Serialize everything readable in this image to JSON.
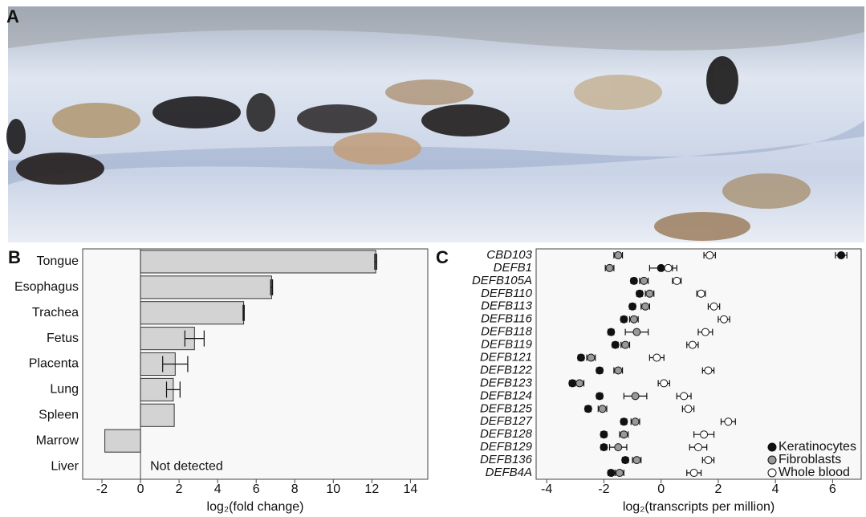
{
  "panel_labels": [
    "A",
    "B",
    "C"
  ],
  "chart_data": [
    {
      "type": "bar",
      "horizontal": true,
      "categories": [
        "Tongue",
        "Esophagus",
        "Trachea",
        "Fetus",
        "Placenta",
        "Lung",
        "Spleen",
        "Marrow",
        "Liver"
      ],
      "values": [
        12.2,
        6.8,
        5.35,
        2.8,
        1.8,
        1.7,
        1.75,
        -1.85,
        null
      ],
      "errors": [
        0.05,
        0.05,
        0.03,
        0.5,
        0.65,
        0.35,
        null,
        null,
        null
      ],
      "annotation": "Not detected",
      "color": "#d3d3d3",
      "xlabel": "log₂(fold change)",
      "xlim": [
        -3,
        14.9
      ],
      "xticks": [
        -2,
        0,
        2,
        4,
        6,
        8,
        10,
        12,
        14
      ]
    },
    {
      "type": "dot",
      "categories": [
        "CBD103",
        "DEFB1",
        "DEFB105A",
        "DEFB110",
        "DEFB113",
        "DEFB116",
        "DEFB118",
        "DEFB119",
        "DEFB121",
        "DEFB122",
        "DEFB123",
        "DEFB124",
        "DEFB125",
        "DEFB127",
        "DEFB128",
        "DEFB129",
        "DEFB136",
        "DEFB4A"
      ],
      "series": [
        {
          "name": "Keratinocytes",
          "color": "#111111",
          "values": [
            6.3,
            0,
            -0.95,
            -0.75,
            -1.0,
            -1.3,
            -1.75,
            -1.6,
            -2.8,
            -2.15,
            -3.1,
            -2.15,
            -2.55,
            -1.3,
            -2.0,
            -2.0,
            -1.25,
            -1.75
          ],
          "errors": [
            0.2,
            0.4,
            0.1,
            0.1,
            0.1,
            0.1,
            0.1,
            0.1,
            0.1,
            0.1,
            0.1,
            0.1,
            0.1,
            0.1,
            0.1,
            0.1,
            0.1,
            0.1
          ]
        },
        {
          "name": "Fibroblasts",
          "color": "#999999",
          "values": [
            -1.5,
            -1.8,
            -0.6,
            -0.4,
            -0.55,
            -0.95,
            -0.85,
            -1.25,
            -2.45,
            -1.5,
            -2.85,
            -0.9,
            -2.05,
            -0.9,
            -1.3,
            -1.5,
            -0.85,
            -1.45
          ],
          "errors": [
            0.15,
            0.15,
            0.15,
            0.15,
            0.15,
            0.15,
            0.4,
            0.15,
            0.15,
            0.15,
            0.15,
            0.4,
            0.15,
            0.15,
            0.15,
            0.3,
            0.15,
            0.15
          ]
        },
        {
          "name": "Whole blood",
          "color": "#ffffff",
          "values": [
            1.7,
            0.25,
            0.55,
            1.4,
            1.85,
            2.2,
            1.55,
            1.1,
            -0.15,
            1.65,
            0.1,
            0.8,
            0.95,
            2.35,
            1.5,
            1.3,
            1.65,
            1.15
          ],
          "errors": [
            0.2,
            0.3,
            0.15,
            0.15,
            0.2,
            0.2,
            0.25,
            0.2,
            0.25,
            0.2,
            0.2,
            0.25,
            0.2,
            0.25,
            0.35,
            0.3,
            0.2,
            0.25
          ]
        }
      ],
      "xlabel": "log₂(transcripts per million)",
      "xlim": [
        -4.37,
        7.0
      ],
      "xticks": [
        -4,
        -2,
        0,
        2,
        4,
        6
      ],
      "legend": "lower right"
    }
  ]
}
